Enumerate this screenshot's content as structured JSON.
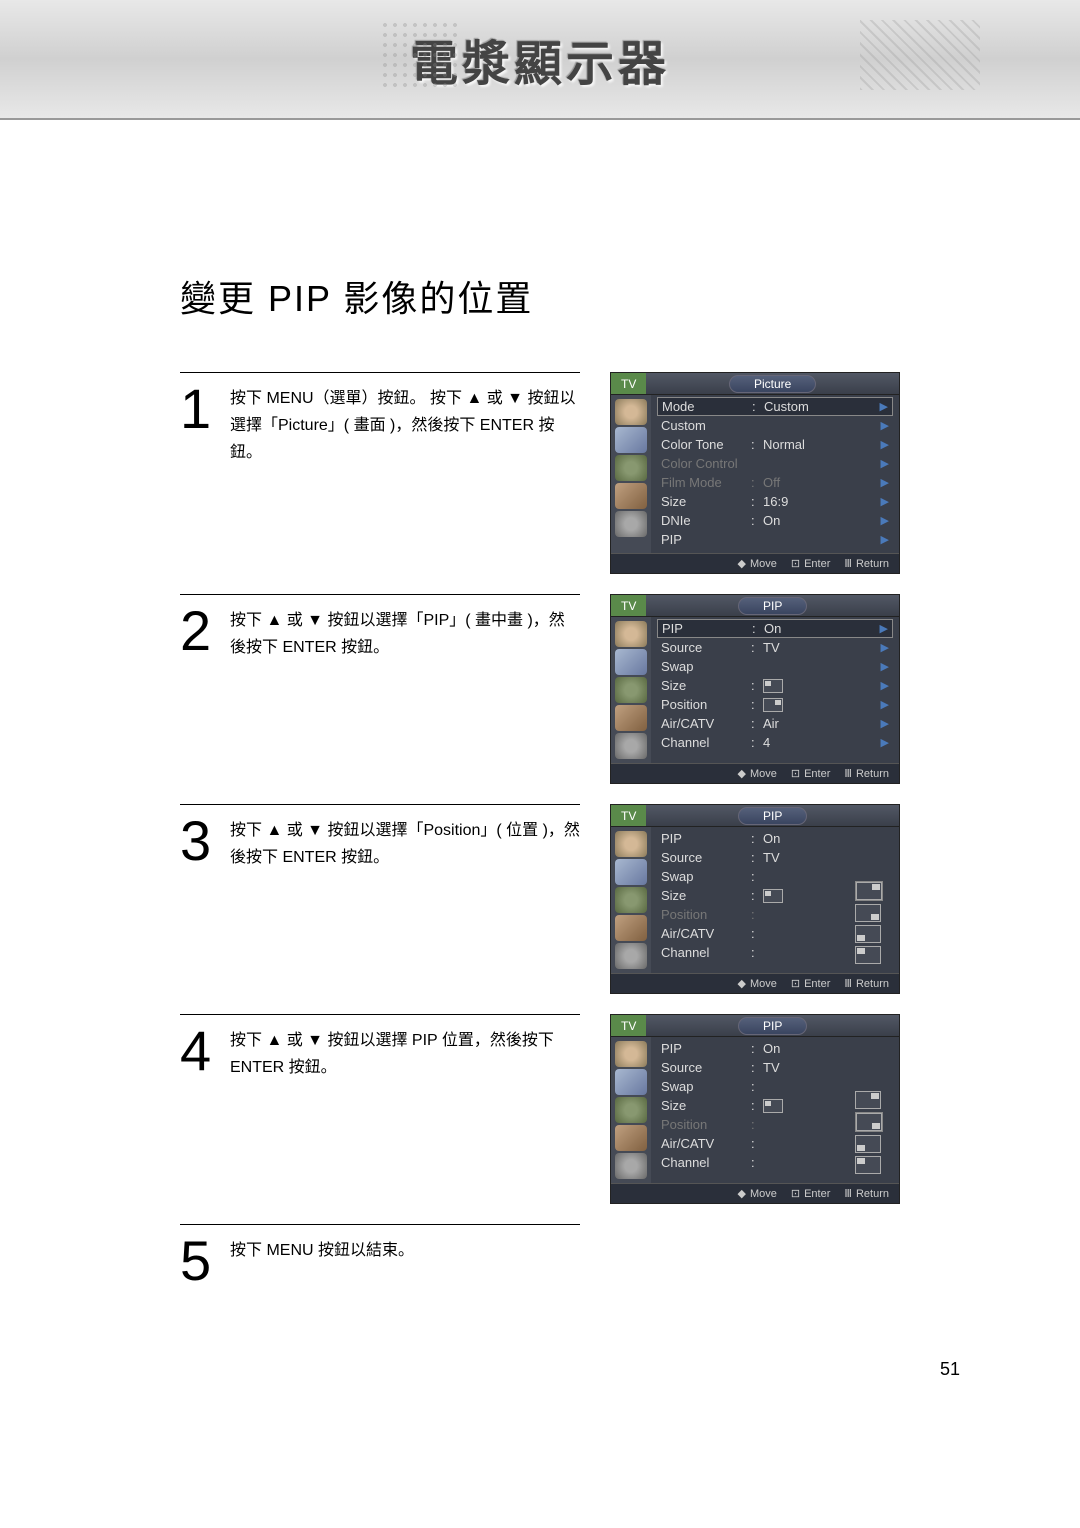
{
  "header_title": "電漿顯示器",
  "page_title": "變更 PIP 影像的位置",
  "page_number": "51",
  "steps": [
    {
      "num": "1",
      "text": "按下 MENU（選單）按鈕。 按下 ▲ 或 ▼ 按鈕以選擇「Picture」( 畫面 )，然後按下 ENTER 按鈕。"
    },
    {
      "num": "2",
      "text": "按下 ▲ 或 ▼ 按鈕以選擇「PIP」( 畫中畫 )，然後按下 ENTER 按鈕。"
    },
    {
      "num": "3",
      "text": "按下 ▲ 或 ▼ 按鈕以選擇「Position」( 位置 )，然後按下 ENTER 按鈕。"
    },
    {
      "num": "4",
      "text": "按下 ▲ 或 ▼ 按鈕以選擇 PIP 位置，然後按下 ENTER 按鈕。"
    },
    {
      "num": "5",
      "text": "按下 MENU 按鈕以結束。"
    }
  ],
  "osd_common": {
    "tv": "TV",
    "move": "Move",
    "enter": "Enter",
    "return": "Return"
  },
  "screens": [
    {
      "title": "Picture",
      "rows": [
        {
          "label": "Mode",
          "value": "Custom",
          "sel": true,
          "arrow": true
        },
        {
          "label": "Custom",
          "value": "",
          "arrow": true
        },
        {
          "label": "Color Tone",
          "value": "Normal",
          "arrow": true
        },
        {
          "label": "Color Control",
          "value": "",
          "dim": true,
          "arrow": true
        },
        {
          "label": "Film Mode",
          "value": "Off",
          "dim": true,
          "arrow": true
        },
        {
          "label": "Size",
          "value": "16:9",
          "arrow": true
        },
        {
          "label": "DNIe",
          "value": "On",
          "arrow": true
        },
        {
          "label": "PIP",
          "value": "",
          "arrow": true
        }
      ]
    },
    {
      "title": "PIP",
      "rows": [
        {
          "label": "PIP",
          "value": "On",
          "sel": true,
          "arrow": true
        },
        {
          "label": "Source",
          "value": "TV",
          "arrow": true
        },
        {
          "label": "Swap",
          "value": "",
          "arrow": true
        },
        {
          "label": "Size",
          "value": "",
          "arrow": true,
          "icon": "tl"
        },
        {
          "label": "Position",
          "value": "",
          "arrow": true,
          "icon": "tr"
        },
        {
          "label": "Air/CATV",
          "value": "Air",
          "arrow": true
        },
        {
          "label": "Channel",
          "value": "4",
          "arrow": true
        }
      ]
    },
    {
      "title": "PIP",
      "position_mode": "list",
      "rows": [
        {
          "label": "PIP",
          "value": "On"
        },
        {
          "label": "Source",
          "value": "TV"
        },
        {
          "label": "Swap",
          "value": ""
        },
        {
          "label": "Size",
          "value": ""
        },
        {
          "label": "Position",
          "value": "",
          "dim": true
        },
        {
          "label": "Air/CATV",
          "value": ""
        },
        {
          "label": "Channel",
          "value": ""
        }
      ]
    },
    {
      "title": "PIP",
      "position_mode": "list2",
      "rows": [
        {
          "label": "PIP",
          "value": "On"
        },
        {
          "label": "Source",
          "value": "TV"
        },
        {
          "label": "Swap",
          "value": ""
        },
        {
          "label": "Size",
          "value": ""
        },
        {
          "label": "Position",
          "value": "",
          "dim": true
        },
        {
          "label": "Air/CATV",
          "value": ""
        },
        {
          "label": "Channel",
          "value": ""
        }
      ]
    }
  ]
}
